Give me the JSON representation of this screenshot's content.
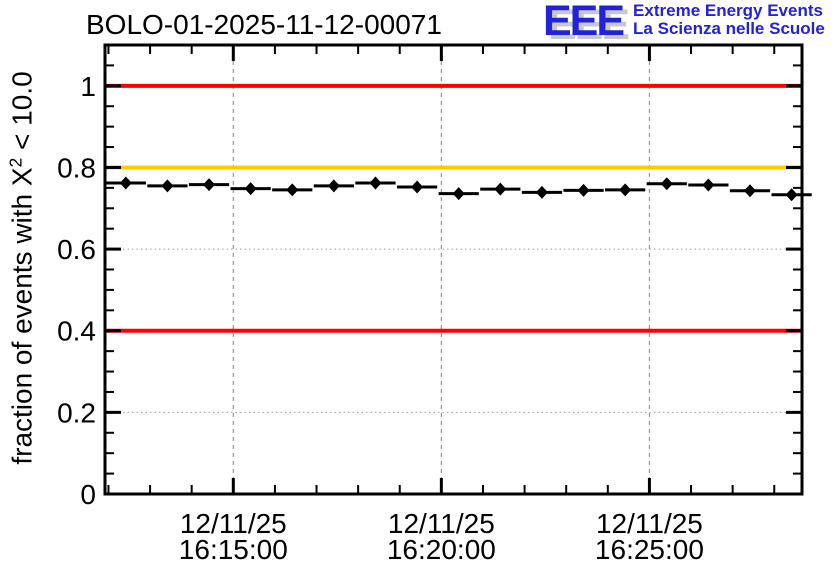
{
  "header": {
    "plot_title": "BOLO-01-2025-11-12-00071",
    "logo": {
      "acronym": "EEE",
      "line1": "Extreme Energy Events",
      "line2": "La Scienza nelle Scuole"
    }
  },
  "colors": {
    "threshold_red": "#ff0000",
    "threshold_orange": "#ffcc00",
    "grid_gray": "#999999",
    "axis_black": "#000000",
    "logo_blue": "#2222d6",
    "logo_shadow": "#c8c8c8"
  },
  "chart_data": {
    "type": "scatter",
    "title": "BOLO-01-2025-11-12-00071",
    "ylabel": "fraction of events with X^2 < 10.0",
    "ylabel_parts": {
      "prefix": "fraction of events with X",
      "sup": "2",
      "suffix": " < 10.0"
    },
    "xlabel": "",
    "ylim": [
      0,
      1.1
    ],
    "x_range": [
      "16:11:55",
      "16:28:40"
    ],
    "grid": true,
    "legend": "none",
    "y_major_ticks": [
      {
        "value": 1.0,
        "label": "1"
      },
      {
        "value": 0.8,
        "label": "0.8"
      },
      {
        "value": 0.6,
        "label": "0.6"
      },
      {
        "value": 0.4,
        "label": "0.4"
      },
      {
        "value": 0.2,
        "label": "0.2"
      },
      {
        "value": 0.0,
        "label": "0"
      }
    ],
    "y_minor_step": 0.05,
    "x_major_ticks": [
      {
        "date": "12/11/25",
        "time": "16:15:00"
      },
      {
        "date": "12/11/25",
        "time": "16:20:00"
      },
      {
        "date": "12/11/25",
        "time": "16:25:00"
      }
    ],
    "x_minor_step_sec": 60,
    "reference_lines": [
      {
        "y": 1.0,
        "color": "#ff0000"
      },
      {
        "y": 0.8,
        "color": "#ffcc00"
      },
      {
        "y": 0.4,
        "color": "#ff0000"
      }
    ],
    "series": [
      {
        "name": "fraction of events with X2 < 10.0",
        "marker": "diamond",
        "color": "#000000",
        "x_error_sec": 29,
        "y_error": 0.006,
        "points": [
          {
            "t": "16:12:25",
            "v": 0.762
          },
          {
            "t": "16:13:25",
            "v": 0.755
          },
          {
            "t": "16:14:25",
            "v": 0.758
          },
          {
            "t": "16:15:25",
            "v": 0.748
          },
          {
            "t": "16:16:25",
            "v": 0.745
          },
          {
            "t": "16:17:25",
            "v": 0.755
          },
          {
            "t": "16:18:25",
            "v": 0.762
          },
          {
            "t": "16:19:25",
            "v": 0.752
          },
          {
            "t": "16:20:25",
            "v": 0.736
          },
          {
            "t": "16:21:25",
            "v": 0.747
          },
          {
            "t": "16:22:25",
            "v": 0.739
          },
          {
            "t": "16:23:25",
            "v": 0.744
          },
          {
            "t": "16:24:25",
            "v": 0.745
          },
          {
            "t": "16:25:25",
            "v": 0.76
          },
          {
            "t": "16:26:25",
            "v": 0.757
          },
          {
            "t": "16:27:25",
            "v": 0.743
          },
          {
            "t": "16:28:25",
            "v": 0.733
          }
        ]
      }
    ]
  }
}
